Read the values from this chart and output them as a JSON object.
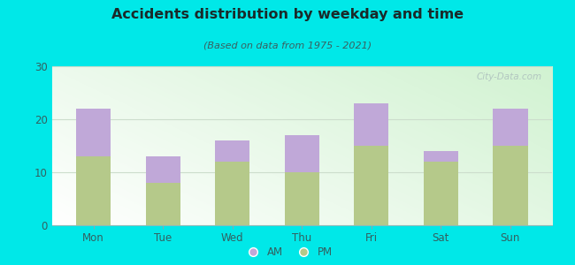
{
  "categories": [
    "Mon",
    "Tue",
    "Wed",
    "Thu",
    "Fri",
    "Sat",
    "Sun"
  ],
  "pm_values": [
    13,
    8,
    12,
    10,
    15,
    12,
    15
  ],
  "am_values": [
    9,
    5,
    4,
    7,
    8,
    2,
    7
  ],
  "pm_color": "#b5c98a",
  "am_color": "#c0a8d8",
  "title": "Accidents distribution by weekday and time",
  "subtitle": "(Based on data from 1975 - 2021)",
  "ylim": [
    0,
    30
  ],
  "yticks": [
    0,
    10,
    20,
    30
  ],
  "background_color": "#00e8e8",
  "bar_width": 0.5,
  "watermark": "City-Data.com",
  "title_color": "#1a2a2a",
  "subtitle_color": "#3a6060",
  "tick_color": "#336060",
  "grid_color": "#ccddcc"
}
